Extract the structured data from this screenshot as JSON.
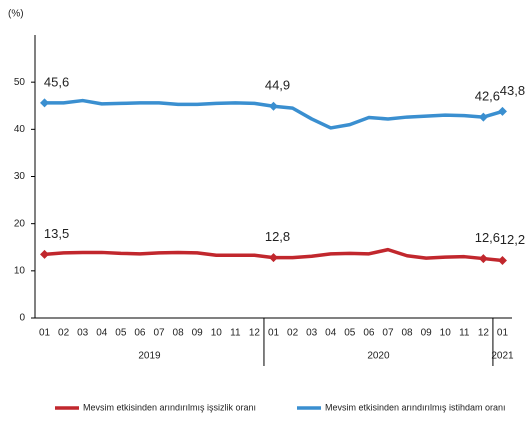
{
  "chart_data": {
    "type": "line",
    "y_label": "(%)",
    "categories": [
      "01",
      "02",
      "03",
      "04",
      "05",
      "06",
      "07",
      "08",
      "09",
      "10",
      "11",
      "12",
      "01",
      "02",
      "03",
      "04",
      "05",
      "06",
      "07",
      "08",
      "09",
      "10",
      "11",
      "12",
      "01"
    ],
    "groups": [
      "2019",
      "2020",
      "2021"
    ],
    "group_sizes": [
      12,
      12,
      1
    ],
    "ylim": [
      0,
      60
    ],
    "yticks": [
      0,
      10,
      20,
      30,
      40,
      50
    ],
    "grid": false,
    "legend": "bottom",
    "series": [
      {
        "name": "Mevsim etkisinden arındırılmış işsizlik oranı",
        "color": "#c1272d",
        "values": [
          13.5,
          13.8,
          13.9,
          13.9,
          13.7,
          13.6,
          13.8,
          13.9,
          13.8,
          13.3,
          13.3,
          13.3,
          12.8,
          12.8,
          13.1,
          13.6,
          13.7,
          13.6,
          14.5,
          13.2,
          12.7,
          12.9,
          13.0,
          12.6,
          12.2
        ],
        "value_labels": [
          "13,5",
          null,
          null,
          null,
          null,
          null,
          null,
          null,
          null,
          null,
          null,
          null,
          "12,8",
          null,
          null,
          null,
          null,
          null,
          null,
          null,
          null,
          null,
          null,
          "12,6",
          "12,2"
        ]
      },
      {
        "name": "Mevsim etkisinden arındırılmış istihdam oranı",
        "color": "#3a8fd0",
        "values": [
          45.6,
          45.6,
          46.1,
          45.4,
          45.5,
          45.6,
          45.6,
          45.3,
          45.3,
          45.5,
          45.6,
          45.5,
          44.9,
          44.5,
          42.2,
          40.3,
          41.0,
          42.5,
          42.2,
          42.6,
          42.8,
          43.0,
          42.9,
          42.6,
          43.8
        ],
        "value_labels": [
          "45,6",
          null,
          null,
          null,
          null,
          null,
          null,
          null,
          null,
          null,
          null,
          null,
          "44,9",
          null,
          null,
          null,
          null,
          null,
          null,
          null,
          null,
          null,
          null,
          "42,6",
          "43,8"
        ]
      }
    ]
  }
}
